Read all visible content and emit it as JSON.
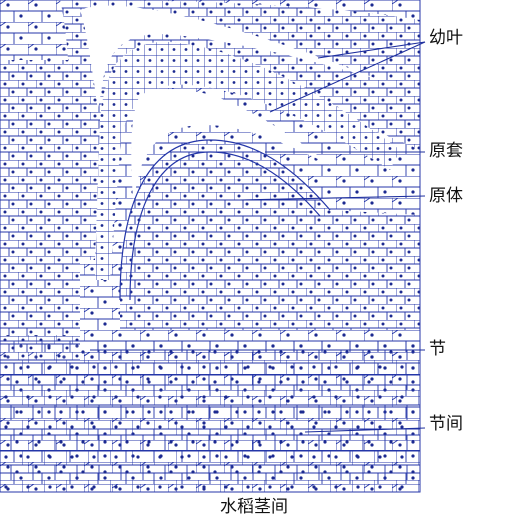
{
  "colors": {
    "cell_wall": "#2436a8",
    "nucleus": "#1c2a90",
    "background": "#ffffff",
    "leader_line": "#1e2f9e",
    "label_text": "#111111"
  },
  "labels": [
    {
      "id": "young-leaf",
      "text": "幼叶"
    },
    {
      "id": "tunica",
      "text": "原套"
    },
    {
      "id": "corpus",
      "text": "原体"
    },
    {
      "id": "node",
      "text": "节"
    },
    {
      "id": "internode",
      "text": "节间"
    }
  ],
  "caption": "水稻茎间"
}
